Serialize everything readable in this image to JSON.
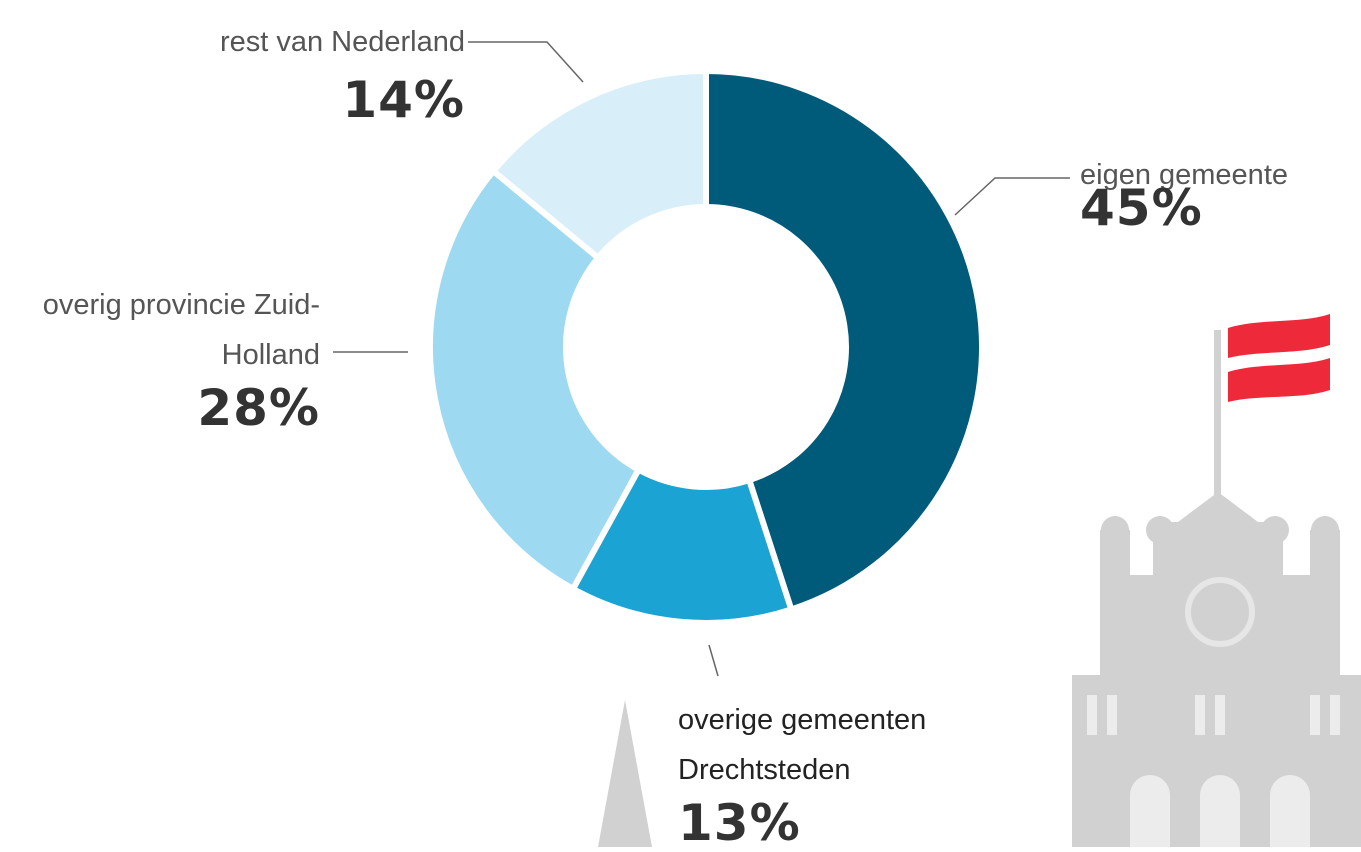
{
  "chart_data": {
    "type": "donut",
    "categories": [
      "eigen gemeente",
      "overige gemeenten Drechtsteden",
      "overig provincie Zuid-Holland",
      "rest van Nederland"
    ],
    "values": [
      45,
      13,
      28,
      14
    ],
    "value_labels": [
      "45%",
      "13%",
      "28%",
      "14%"
    ],
    "colors": [
      "#005b7a",
      "#1ba3d3",
      "#9ddaf2",
      "#d8eff9"
    ]
  }
}
